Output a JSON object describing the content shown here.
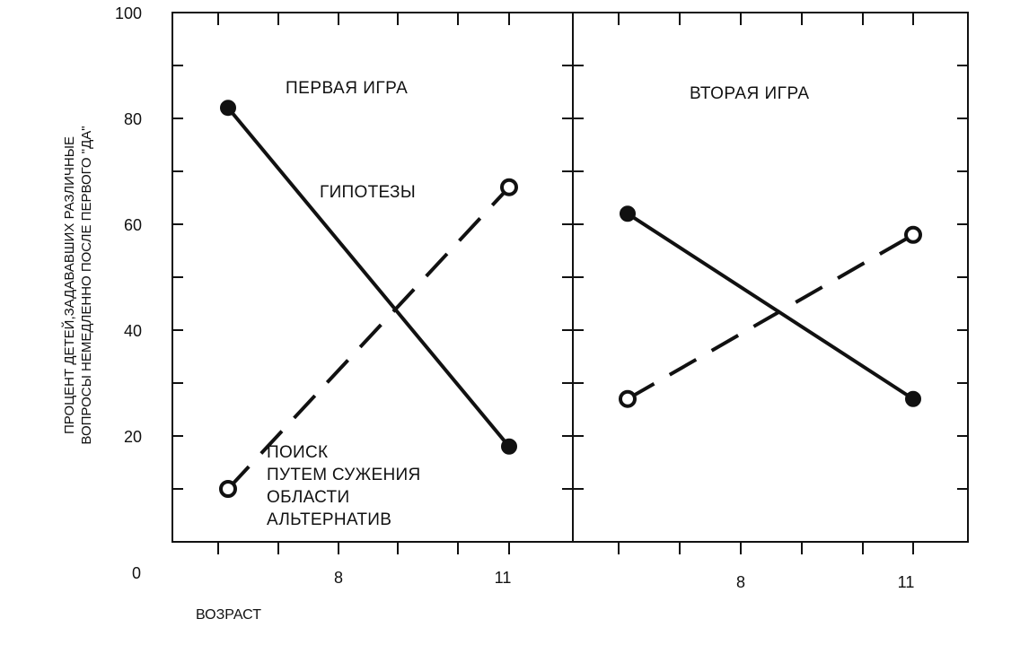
{
  "chart_data": {
    "type": "line",
    "ylabel_lines": [
      "ПРОЦЕНТ ДЕТЕЙ,ЗАДАВАВШИХ РАЗЛИЧНЫЕ",
      "ВОПРОСЫ НЕМЕДЛЕННО ПОСЛЕ ПЕРВОГО \"ДА\""
    ],
    "xlabel": "ВОЗРАСТ",
    "origin_label": "0",
    "ylim": [
      0,
      100
    ],
    "y_tick_labels": [
      "20",
      "40",
      "60",
      "80",
      "100"
    ],
    "x_tick_labels": [
      "8",
      "11"
    ],
    "panels": [
      {
        "title": "ПЕРВАЯ ИГРА",
        "x": [
          "8",
          "11"
        ],
        "series": [
          {
            "name": "ГИПОТЕЗЫ",
            "style": "solid",
            "marker": "filled",
            "values": [
              82,
              18
            ]
          },
          {
            "name_lines": [
              "ПОИСК",
              "ПУТЕМ СУЖЕНИЯ",
              "ОБЛАСТИ",
              "АЛЬТЕРНАТИВ"
            ],
            "style": "dashed",
            "marker": "open",
            "values": [
              10,
              67
            ]
          }
        ]
      },
      {
        "title": "ВТОРАЯ ИГРА",
        "x": [
          "8",
          "11"
        ],
        "series": [
          {
            "style": "solid",
            "marker": "filled",
            "values": [
              62,
              27
            ]
          },
          {
            "style": "dashed",
            "marker": "open",
            "values": [
              27,
              58
            ]
          }
        ]
      }
    ]
  }
}
